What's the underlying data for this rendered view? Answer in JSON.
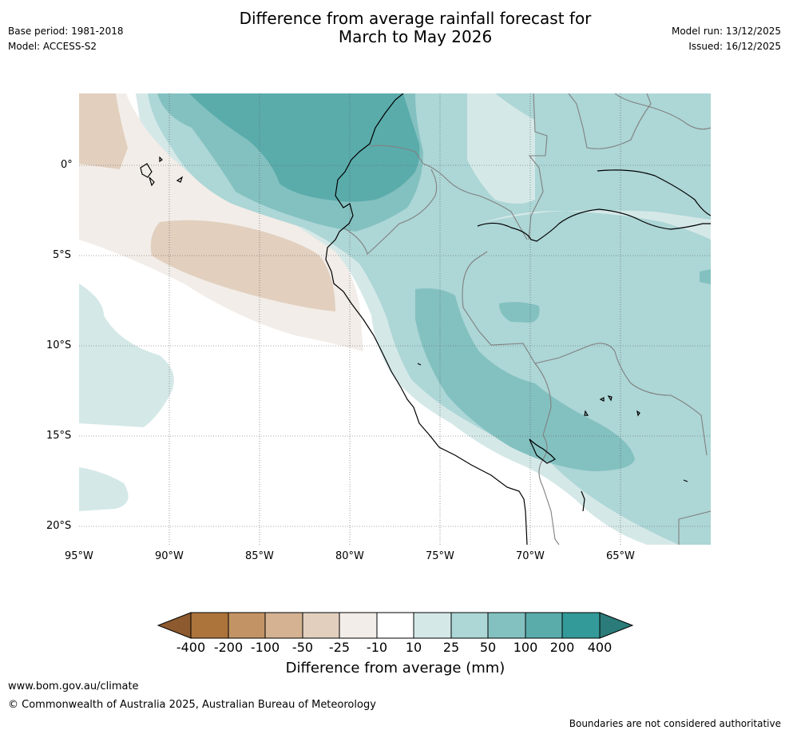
{
  "header": {
    "title_line1": "Difference from average rainfall forecast for",
    "title_line2": "March to May 2026",
    "base_period": "Base period: 1981-2018",
    "model": "Model: ACCESS-S2",
    "model_run": "Model run: 13/12/2025",
    "issued": "Issued: 16/12/2025"
  },
  "map": {
    "lat_labels": [
      "0°",
      "5°S",
      "10°S",
      "15°S",
      "20°S"
    ],
    "lon_labels": [
      "95°W",
      "90°W",
      "85°W",
      "80°W",
      "75°W",
      "70°W",
      "65°W"
    ]
  },
  "colorbar": {
    "title": "Difference from average (mm)",
    "ticks": [
      "-400",
      "-200",
      "-100",
      "-50",
      "-25",
      "-10",
      "10",
      "25",
      "50",
      "100",
      "200",
      "400"
    ],
    "colors": {
      "below_400": "#8c5a2e",
      "m400_m200": "#ac733b",
      "m200_m100": "#c29465",
      "m100_m50": "#d4b292",
      "m50_m25": "#e2cfbe",
      "m25_m10": "#f2ede8",
      "m10_10": "#ffffff",
      "p10_25": "#d5e8e8",
      "p25_50": "#add6d6",
      "p50_100": "#83c1c0",
      "p100_200": "#5aacab",
      "p200_400": "#349a99",
      "above_400": "#2a7b79"
    }
  },
  "footer": {
    "website": "www.bom.gov.au/climate",
    "copyright": "© Commonwealth of Australia 2025, Australian Bureau of Meteorology",
    "disclaimer": "Boundaries are not considered authoritative"
  }
}
